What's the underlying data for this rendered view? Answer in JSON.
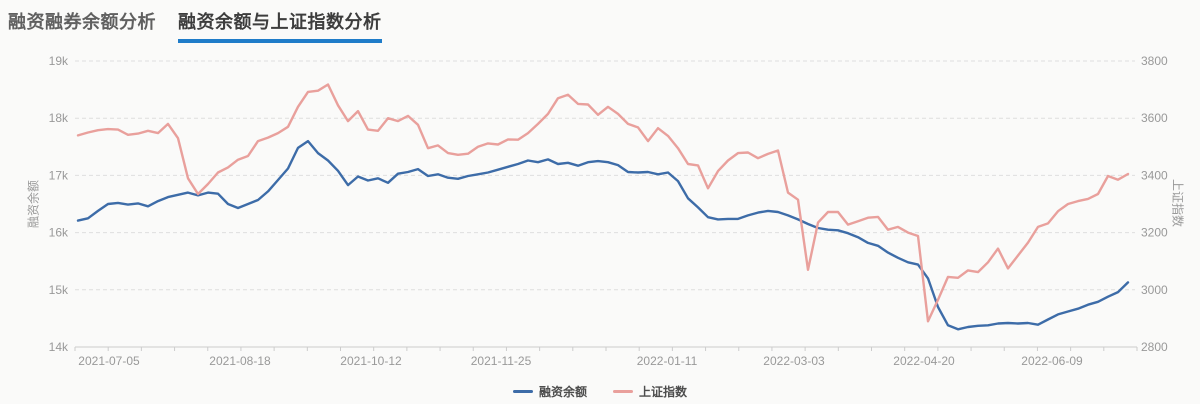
{
  "tabs": [
    {
      "label": "融资融券余额分析",
      "active": false
    },
    {
      "label": "融资余额与上证指数分析",
      "active": true
    }
  ],
  "accent_color": "#1f7cc9",
  "chart_data": {
    "type": "line",
    "grid": "horizontal dashed gridlines",
    "legend_position": "bottom-center",
    "x_tick_labels": [
      "2021-07-05",
      "2021-08-18",
      "2021-10-12",
      "2021-11-25",
      "2022-01-11",
      "2022-03-03",
      "2022-04-20",
      "2022-06-09"
    ],
    "y_axis_left": {
      "label": "融资余额",
      "tick_labels": [
        "19k",
        "18k",
        "17k",
        "16k",
        "15k",
        "14k"
      ],
      "min": 14000,
      "max": 19000
    },
    "y_axis_right": {
      "label": "上证指数",
      "tick_labels": [
        "3800",
        "3600",
        "3400",
        "3200",
        "3000",
        "2800"
      ],
      "min": 2800,
      "max": 3800
    },
    "legend": [
      {
        "name": "融资余额",
        "color": "#3d6ca8"
      },
      {
        "name": "上证指数",
        "color": "#e9a09c"
      }
    ],
    "series": [
      {
        "name": "融资余额",
        "axis": "left",
        "color": "#3d6ca8",
        "values": [
          16210,
          16250,
          16380,
          16500,
          16520,
          16490,
          16510,
          16460,
          16550,
          16620,
          16660,
          16700,
          16650,
          16700,
          16680,
          16500,
          16430,
          16500,
          16570,
          16720,
          16920,
          17120,
          17480,
          17600,
          17390,
          17260,
          17080,
          16830,
          16980,
          16910,
          16950,
          16870,
          17030,
          17060,
          17110,
          16990,
          17020,
          16960,
          16940,
          16990,
          17020,
          17050,
          17100,
          17150,
          17200,
          17260,
          17230,
          17280,
          17200,
          17220,
          17170,
          17230,
          17250,
          17230,
          17180,
          17060,
          17050,
          17060,
          17020,
          17050,
          16900,
          16600,
          16440,
          16270,
          16230,
          16240,
          16240,
          16300,
          16350,
          16380,
          16360,
          16300,
          16230,
          16150,
          16080,
          16050,
          16040,
          15990,
          15920,
          15820,
          15770,
          15650,
          15560,
          15480,
          15440,
          15200,
          14700,
          14380,
          14310,
          14350,
          14370,
          14380,
          14410,
          14420,
          14410,
          14420,
          14390,
          14480,
          14570,
          14620,
          14670,
          14740,
          14790,
          14880,
          14960,
          15130
        ]
      },
      {
        "name": "上证指数",
        "axis": "right",
        "color": "#e9a09c",
        "values": [
          3540,
          3550,
          3558,
          3562,
          3560,
          3542,
          3546,
          3556,
          3548,
          3580,
          3530,
          3390,
          3335,
          3370,
          3410,
          3428,
          3455,
          3468,
          3520,
          3532,
          3548,
          3570,
          3640,
          3692,
          3696,
          3718,
          3645,
          3590,
          3625,
          3560,
          3556,
          3600,
          3590,
          3608,
          3577,
          3495,
          3505,
          3478,
          3472,
          3476,
          3500,
          3512,
          3508,
          3526,
          3525,
          3548,
          3580,
          3615,
          3670,
          3682,
          3650,
          3648,
          3612,
          3640,
          3615,
          3580,
          3568,
          3520,
          3565,
          3538,
          3495,
          3440,
          3435,
          3355,
          3415,
          3452,
          3478,
          3480,
          3460,
          3475,
          3487,
          3340,
          3315,
          3070,
          3235,
          3272,
          3272,
          3228,
          3240,
          3252,
          3255,
          3210,
          3220,
          3200,
          3188,
          2890,
          2965,
          3045,
          3042,
          3068,
          3062,
          3096,
          3144,
          3075,
          3120,
          3165,
          3220,
          3232,
          3275,
          3300,
          3310,
          3318,
          3335,
          3398,
          3385,
          3405
        ]
      }
    ]
  }
}
